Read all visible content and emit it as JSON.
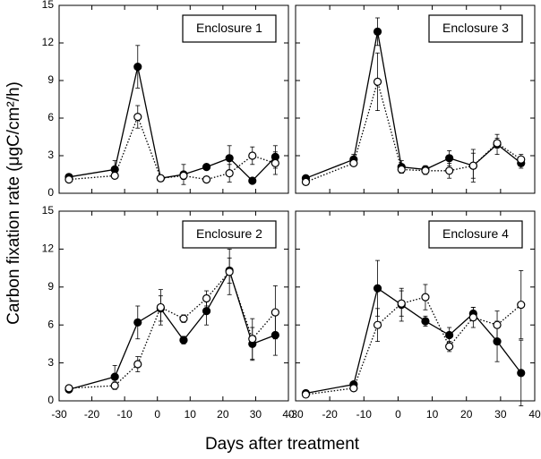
{
  "x_label": "Days after treatment",
  "y_label": "Carbon fixation rate (μgC/cm²/h)",
  "chart_data": [
    {
      "type": "line",
      "title": "Enclosure 1",
      "x": [
        -27,
        -13,
        -6,
        1,
        8,
        15,
        22,
        29,
        36
      ],
      "xlim": [
        -30,
        40
      ],
      "xticks": [
        -30,
        -20,
        -10,
        0,
        10,
        20,
        30,
        40
      ],
      "ylim": [
        0,
        15
      ],
      "yticks": [
        0,
        3,
        6,
        9,
        12,
        15
      ],
      "series": [
        {
          "color": "#000000",
          "marker": "filled",
          "dashed": false,
          "values": [
            1.3,
            1.9,
            10.1,
            1.2,
            1.5,
            2.1,
            2.8,
            1.0,
            2.9
          ],
          "errors": [
            0.2,
            0.7,
            1.7,
            0.2,
            0.8,
            0.2,
            1.0,
            0.1,
            0.9
          ]
        },
        {
          "color": "#000000",
          "marker": "open",
          "dashed": true,
          "values": [
            1.1,
            1.4,
            6.1,
            1.2,
            1.4,
            1.1,
            1.6,
            3.0,
            2.4
          ],
          "errors": [
            0.2,
            0.2,
            0.9,
            0.2,
            0.3,
            0.2,
            0.7,
            0.7,
            0.9
          ]
        }
      ]
    },
    {
      "type": "line",
      "title": "Enclosure 3",
      "x": [
        -27,
        -13,
        -6,
        1,
        8,
        15,
        22,
        29,
        36
      ],
      "xlim": [
        -30,
        40
      ],
      "xticks": [
        -30,
        -20,
        -10,
        0,
        10,
        20,
        30,
        40
      ],
      "ylim": [
        0,
        15
      ],
      "yticks": [
        0,
        3,
        6,
        9,
        12,
        15
      ],
      "series": [
        {
          "color": "#000000",
          "marker": "filled",
          "dashed": false,
          "values": [
            1.2,
            2.7,
            12.9,
            2.1,
            1.9,
            2.8,
            2.2,
            3.9,
            2.4
          ],
          "errors": [
            0.1,
            0.4,
            1.1,
            0.5,
            0.3,
            0.6,
            1.0,
            0.8,
            0.4
          ]
        },
        {
          "color": "#000000",
          "marker": "open",
          "dashed": true,
          "values": [
            0.9,
            2.4,
            8.9,
            1.9,
            1.8,
            1.8,
            2.2,
            4.0,
            2.7
          ],
          "errors": [
            0.1,
            0.2,
            2.3,
            0.3,
            0.3,
            0.6,
            1.3,
            0.4,
            0.4
          ]
        }
      ]
    },
    {
      "type": "line",
      "title": "Enclosure 2",
      "x": [
        -27,
        -13,
        -6,
        1,
        8,
        15,
        22,
        29,
        36
      ],
      "xlim": [
        -30,
        40
      ],
      "xticks": [
        -30,
        -20,
        -10,
        0,
        10,
        20,
        30,
        40
      ],
      "ylim": [
        0,
        15
      ],
      "yticks": [
        0,
        3,
        6,
        9,
        12,
        15
      ],
      "series": [
        {
          "color": "#000000",
          "marker": "filled",
          "dashed": false,
          "values": [
            0.9,
            1.9,
            6.2,
            7.3,
            4.8,
            7.1,
            10.3,
            4.5,
            5.2
          ],
          "errors": [
            0.1,
            0.9,
            1.3,
            1.0,
            0.3,
            1.1,
            1.0,
            1.3,
            1.6
          ]
        },
        {
          "color": "#000000",
          "marker": "open",
          "dashed": true,
          "values": [
            1.0,
            1.2,
            2.9,
            7.4,
            6.5,
            8.1,
            10.2,
            4.9,
            7.0
          ],
          "errors": [
            0.1,
            0.3,
            0.6,
            1.4,
            0.3,
            0.6,
            1.8,
            1.6,
            2.1
          ]
        }
      ]
    },
    {
      "type": "line",
      "title": "Enclosure 4",
      "x": [
        -27,
        -13,
        -6,
        1,
        8,
        15,
        22,
        29,
        36
      ],
      "xlim": [
        -30,
        40
      ],
      "xticks": [
        -30,
        -20,
        -10,
        0,
        10,
        20,
        30,
        40
      ],
      "ylim": [
        0,
        15
      ],
      "yticks": [
        0,
        3,
        6,
        9,
        12,
        15
      ],
      "series": [
        {
          "color": "#000000",
          "marker": "filled",
          "dashed": false,
          "values": [
            0.6,
            1.3,
            8.9,
            7.6,
            6.3,
            5.2,
            6.9,
            4.7,
            2.2
          ],
          "errors": [
            0.1,
            0.2,
            2.2,
            1.3,
            0.4,
            0.6,
            0.5,
            1.6,
            2.6
          ]
        },
        {
          "color": "#000000",
          "marker": "open",
          "dashed": true,
          "values": [
            0.5,
            1.0,
            6.0,
            7.7,
            8.2,
            4.3,
            6.6,
            6.0,
            7.6
          ],
          "errors": [
            0.1,
            0.2,
            1.3,
            1.0,
            1.0,
            0.4,
            0.8,
            1.1,
            2.7
          ]
        }
      ]
    }
  ]
}
